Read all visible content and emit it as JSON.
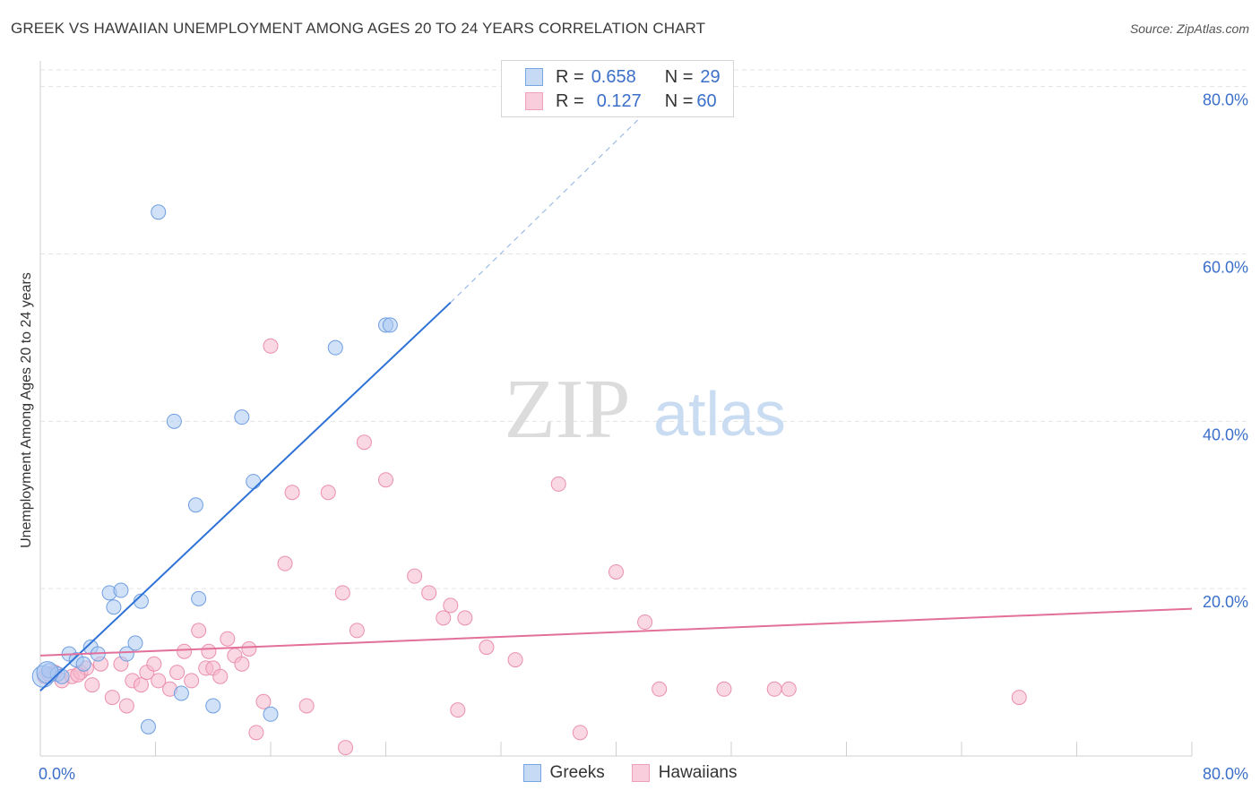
{
  "title": "GREEK VS HAWAIIAN UNEMPLOYMENT AMONG AGES 20 TO 24 YEARS CORRELATION CHART",
  "source": "Source: ZipAtlas.com",
  "watermark": {
    "zip": "ZIP",
    "atlas": "atlas"
  },
  "legend_top": {
    "greeks": {
      "r_label": "R =",
      "r_value": "0.658",
      "n_label": "N =",
      "n_value": "29"
    },
    "hawaiians": {
      "r_label": "R =",
      "r_value": "0.127",
      "n_label": "N =",
      "n_value": "60"
    }
  },
  "legend_bottom": {
    "greeks": "Greeks",
    "hawaiians": "Hawaiians"
  },
  "colors": {
    "greeks_fill": "#a9c8f2",
    "greeks_stroke": "#6f9ee0",
    "greeks_line": "#2f72d6",
    "hawaiians_fill": "#f6b8cc",
    "hawaiians_stroke": "#ea8fad",
    "hawaiians_line": "#e2709a",
    "tick_label": "#3b6fc9",
    "grid": "#e3e3e3"
  },
  "chart_data": {
    "type": "scatter",
    "title": "GREEK VS HAWAIIAN UNEMPLOYMENT AMONG AGES 20 TO 24 YEARS CORRELATION CHART",
    "xlabel": "",
    "ylabel": "Unemployment Among Ages 20 to 24 years",
    "xlim": [
      0,
      80
    ],
    "ylim": [
      0,
      82
    ],
    "x_tick_labels": [
      "0.0%",
      "80.0%"
    ],
    "y_ticks": [
      {
        "value": 20,
        "label": "20.0%"
      },
      {
        "value": 40,
        "label": "40.0%"
      },
      {
        "value": 60,
        "label": "60.0%"
      },
      {
        "value": 80,
        "label": "80.0%"
      }
    ],
    "series": [
      {
        "name": "Greeks",
        "points": [
          [
            0.2,
            9.5
          ],
          [
            0.6,
            10.2
          ],
          [
            1.2,
            9.8
          ],
          [
            1.5,
            9.5
          ],
          [
            2.0,
            12.2
          ],
          [
            2.5,
            11.5
          ],
          [
            3.0,
            11.0
          ],
          [
            3.5,
            13.0
          ],
          [
            4.0,
            12.2
          ],
          [
            4.8,
            19.5
          ],
          [
            5.1,
            17.8
          ],
          [
            5.6,
            19.8
          ],
          [
            6.0,
            12.2
          ],
          [
            6.6,
            13.5
          ],
          [
            7.0,
            18.5
          ],
          [
            7.5,
            3.5
          ],
          [
            8.2,
            65.0
          ],
          [
            9.3,
            40.0
          ],
          [
            9.8,
            7.5
          ],
          [
            10.8,
            30.0
          ],
          [
            11.0,
            18.8
          ],
          [
            12.0,
            6.0
          ],
          [
            14.0,
            40.5
          ],
          [
            14.8,
            32.8
          ],
          [
            16.0,
            5.0
          ],
          [
            20.5,
            48.8
          ],
          [
            24.0,
            51.5
          ],
          [
            24.3,
            51.5
          ],
          [
            0.5,
            10.0
          ]
        ],
        "trend": {
          "x": [
            0,
            28.5
          ],
          "y": [
            7.8,
            54.2
          ],
          "dashed_to": {
            "x": 41.5,
            "y": 76.0
          }
        }
      },
      {
        "name": "Hawaiians",
        "points": [
          [
            0.3,
            9.5
          ],
          [
            1.0,
            10.0
          ],
          [
            1.5,
            9.0
          ],
          [
            2.2,
            9.5
          ],
          [
            2.8,
            10.0
          ],
          [
            3.2,
            10.5
          ],
          [
            3.6,
            8.5
          ],
          [
            4.2,
            11.0
          ],
          [
            5.0,
            7.0
          ],
          [
            5.6,
            11.0
          ],
          [
            6.0,
            6.0
          ],
          [
            6.4,
            9.0
          ],
          [
            7.0,
            8.5
          ],
          [
            7.4,
            10.0
          ],
          [
            7.9,
            11.0
          ],
          [
            8.2,
            9.0
          ],
          [
            9.0,
            8.0
          ],
          [
            9.5,
            10.0
          ],
          [
            10.0,
            12.5
          ],
          [
            10.5,
            9.0
          ],
          [
            11.0,
            15.0
          ],
          [
            11.5,
            10.5
          ],
          [
            11.7,
            12.5
          ],
          [
            12.0,
            10.5
          ],
          [
            12.5,
            9.5
          ],
          [
            13.0,
            14.0
          ],
          [
            13.5,
            12.0
          ],
          [
            14.0,
            11.0
          ],
          [
            14.5,
            12.8
          ],
          [
            15.0,
            2.8
          ],
          [
            15.5,
            6.5
          ],
          [
            16.0,
            49.0
          ],
          [
            17.0,
            23.0
          ],
          [
            17.5,
            31.5
          ],
          [
            18.5,
            6.0
          ],
          [
            20.0,
            31.5
          ],
          [
            21.0,
            19.5
          ],
          [
            21.2,
            1.0
          ],
          [
            22.0,
            15.0
          ],
          [
            22.5,
            37.5
          ],
          [
            24.0,
            33.0
          ],
          [
            26.0,
            21.5
          ],
          [
            27.0,
            19.5
          ],
          [
            28.0,
            16.5
          ],
          [
            28.5,
            18.0
          ],
          [
            29.0,
            5.5
          ],
          [
            29.5,
            16.5
          ],
          [
            31.0,
            13.0
          ],
          [
            33.0,
            11.5
          ],
          [
            36.0,
            32.5
          ],
          [
            37.5,
            2.8
          ],
          [
            40.0,
            22.0
          ],
          [
            42.0,
            16.0
          ],
          [
            43.0,
            8.0
          ],
          [
            47.5,
            8.0
          ],
          [
            51.0,
            8.0
          ],
          [
            52.0,
            8.0
          ],
          [
            68.0,
            7.0
          ],
          [
            0.6,
            9.8
          ],
          [
            2.6,
            9.7
          ]
        ],
        "trend": {
          "x": [
            0,
            80
          ],
          "y": [
            12.0,
            17.6
          ]
        }
      }
    ]
  }
}
